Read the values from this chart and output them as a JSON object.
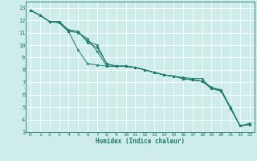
{
  "xlabel": "Humidex (Indice chaleur)",
  "bg_color": "#cdecea",
  "grid_color": "#ffffff",
  "line_color": "#1e7a6e",
  "xlim": [
    -0.5,
    23.5
  ],
  "ylim": [
    3,
    13.5
  ],
  "xticks": [
    0,
    1,
    2,
    3,
    4,
    5,
    6,
    7,
    8,
    9,
    10,
    11,
    12,
    13,
    14,
    15,
    16,
    17,
    18,
    19,
    20,
    21,
    22,
    23
  ],
  "yticks": [
    3,
    4,
    5,
    6,
    7,
    8,
    9,
    10,
    11,
    12,
    13
  ],
  "series": [
    [
      12.8,
      12.4,
      11.9,
      11.8,
      11.1,
      9.6,
      8.5,
      8.4,
      8.3,
      8.3,
      8.3,
      8.2,
      8.0,
      7.8,
      7.6,
      7.5,
      7.4,
      7.3,
      7.3,
      6.5,
      6.3,
      4.9,
      3.5,
      3.6
    ],
    [
      12.8,
      12.4,
      11.9,
      11.8,
      11.1,
      11.0,
      10.5,
      9.5,
      8.3,
      8.3,
      8.3,
      8.2,
      8.0,
      7.8,
      7.6,
      7.5,
      7.3,
      7.2,
      7.1,
      6.5,
      6.3,
      4.9,
      3.5,
      3.6
    ],
    [
      12.8,
      12.4,
      11.9,
      11.9,
      11.2,
      11.1,
      10.2,
      9.8,
      8.5,
      8.3,
      8.3,
      8.2,
      8.0,
      7.8,
      7.6,
      7.5,
      7.3,
      7.2,
      7.1,
      6.5,
      6.4,
      4.9,
      3.5,
      3.6
    ],
    [
      12.8,
      12.4,
      11.9,
      11.9,
      11.2,
      11.1,
      10.3,
      10.0,
      8.5,
      8.3,
      8.3,
      8.2,
      8.0,
      7.8,
      7.6,
      7.5,
      7.3,
      7.2,
      7.1,
      6.6,
      6.4,
      5.0,
      3.5,
      3.7
    ]
  ]
}
